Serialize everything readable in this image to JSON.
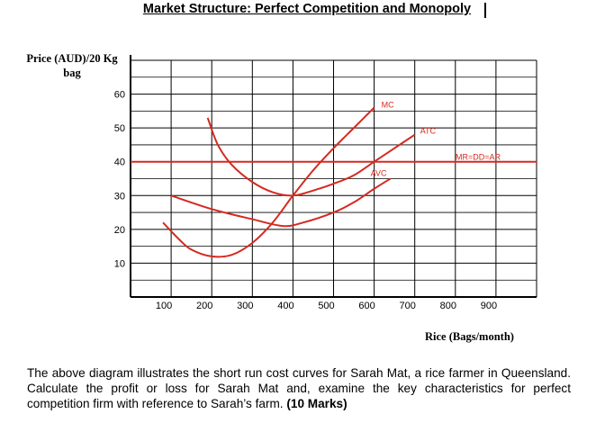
{
  "title": "Market Structure: Perfect Competition and Monopoly",
  "question": {
    "text": "The above diagram illustrates the short run cost curves for Sarah Mat, a rice farmer in Queensland. Calculate the profit or loss for Sarah Mat and, examine the key characteristics for perfect competition firm with reference to Sarah’s farm.",
    "marks": "(10 Marks)"
  },
  "chart_data": {
    "type": "line",
    "ylabel": "Price (AUD)/20 Kg bag",
    "xlabel": "Rice (Bags/month)",
    "x_ticks": [
      "100",
      "200",
      "300",
      "400",
      "500",
      "600",
      "700",
      "800",
      "900"
    ],
    "y_ticks": [
      "10",
      "20",
      "30",
      "40",
      "50",
      "60"
    ],
    "xlim": [
      0,
      1000
    ],
    "ylim": [
      0,
      70
    ],
    "grid": true,
    "series_color": "#d42a20",
    "series": [
      {
        "name": "MC",
        "points": [
          [
            80,
            22
          ],
          [
            120,
            17
          ],
          [
            150,
            14
          ],
          [
            200,
            12
          ],
          [
            250,
            12.5
          ],
          [
            300,
            16
          ],
          [
            350,
            22
          ],
          [
            400,
            30
          ],
          [
            450,
            37.5
          ],
          [
            500,
            44
          ],
          [
            550,
            50
          ],
          [
            600,
            56
          ]
        ]
      },
      {
        "name": "ATC",
        "points": [
          [
            190,
            53
          ],
          [
            215,
            45
          ],
          [
            250,
            39
          ],
          [
            300,
            34
          ],
          [
            350,
            31
          ],
          [
            400,
            30
          ],
          [
            450,
            31.5
          ],
          [
            500,
            33.5
          ],
          [
            550,
            36
          ],
          [
            600,
            40
          ],
          [
            650,
            44
          ],
          [
            700,
            48
          ]
        ]
      },
      {
        "name": "AVC",
        "points": [
          [
            100,
            30
          ],
          [
            200,
            26
          ],
          [
            300,
            23
          ],
          [
            375,
            21
          ],
          [
            425,
            22
          ],
          [
            500,
            25
          ],
          [
            550,
            28
          ],
          [
            600,
            32
          ],
          [
            640,
            35
          ]
        ]
      },
      {
        "name": "MR=DD=AR",
        "points": [
          [
            0,
            40
          ],
          [
            1000,
            40
          ]
        ]
      }
    ]
  }
}
